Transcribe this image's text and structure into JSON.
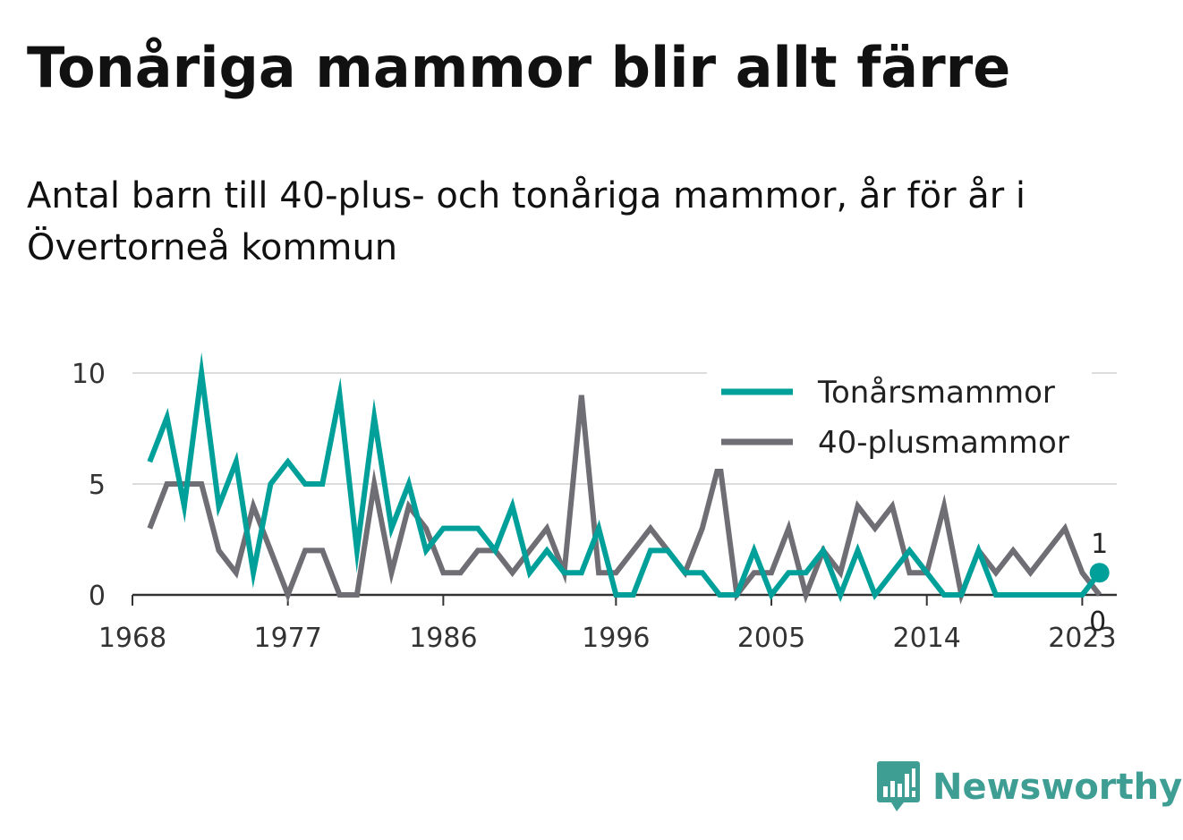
{
  "header": {
    "title": "Tonåriga mammor blir allt färre",
    "subtitle": "Antal barn till 40-plus- och tonåriga mammor, år för år i Övertorneå kommun"
  },
  "brand": {
    "name": "Newsworthy",
    "icon": "newsworthy-logo-icon",
    "color": "#3e9e94"
  },
  "chart_data": {
    "type": "line",
    "x": [
      1969,
      1970,
      1971,
      1972,
      1973,
      1974,
      1975,
      1976,
      1977,
      1978,
      1979,
      1980,
      1981,
      1982,
      1983,
      1984,
      1985,
      1986,
      1987,
      1988,
      1989,
      1990,
      1991,
      1992,
      1993,
      1994,
      1995,
      1996,
      1997,
      1998,
      1999,
      2000,
      2001,
      2002,
      2003,
      2004,
      2005,
      2006,
      2007,
      2008,
      2009,
      2010,
      2011,
      2012,
      2013,
      2014,
      2015,
      2016,
      2017,
      2018,
      2019,
      2020,
      2021,
      2022,
      2023,
      2024
    ],
    "series": [
      {
        "name": "Tonårsmammor",
        "color": "#00a09a",
        "values": [
          6,
          8,
          4,
          10,
          4,
          6,
          1,
          5,
          6,
          5,
          5,
          9,
          2,
          8,
          3,
          5,
          2,
          3,
          3,
          3,
          2,
          4,
          1,
          2,
          1,
          1,
          3,
          0,
          0,
          2,
          2,
          1,
          1,
          0,
          0,
          2,
          0,
          1,
          1,
          2,
          0,
          2,
          0,
          1,
          2,
          1,
          0,
          0,
          2,
          0,
          0,
          0,
          0,
          0,
          0,
          1
        ]
      },
      {
        "name": "40-plusmammor",
        "color": "#6e6e74",
        "values": [
          3,
          5,
          5,
          5,
          2,
          1,
          4,
          2,
          0,
          2,
          2,
          0,
          0,
          5,
          1,
          4,
          3,
          1,
          1,
          2,
          2,
          1,
          2,
          3,
          1,
          9,
          1,
          1,
          2,
          3,
          2,
          1,
          3,
          6,
          0,
          1,
          1,
          3,
          0,
          2,
          1,
          4,
          3,
          4,
          1,
          1,
          4,
          0,
          2,
          1,
          2,
          1,
          2,
          3,
          1,
          0
        ]
      }
    ],
    "end_labels": [
      "1",
      "0"
    ],
    "x_ticks": [
      1968,
      1977,
      1986,
      1996,
      2005,
      2014,
      2023
    ],
    "y_ticks": [
      0,
      5,
      10
    ],
    "xlim": [
      1968,
      2025
    ],
    "ylim": [
      0,
      10
    ],
    "grid": true,
    "legend_position": "top-right",
    "title": "",
    "xlabel": "",
    "ylabel": ""
  }
}
